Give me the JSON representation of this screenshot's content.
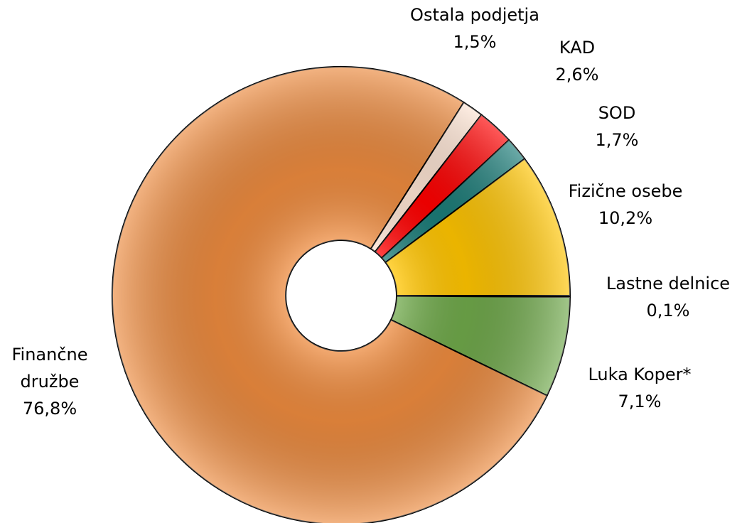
{
  "chart_data": {
    "type": "donut",
    "categories": [
      "Lastne delnice",
      "Luka Koper*",
      "Finančne družbe",
      "Ostala podjetja",
      "KAD",
      "SOD",
      "Fizične osebe"
    ],
    "values": [
      0.1,
      7.1,
      76.8,
      1.5,
      2.6,
      1.7,
      10.2
    ],
    "value_labels": [
      "0,1%",
      "7,1%",
      "76,8%",
      "1,5%",
      "2,6%",
      "1,7%",
      "10,2%"
    ],
    "colors": [
      "#2e6b1e",
      "#6fa84a",
      "#ec8a3e",
      "#fde3d2",
      "#ff0000",
      "#1b7c78",
      "#ffc400"
    ]
  }
}
